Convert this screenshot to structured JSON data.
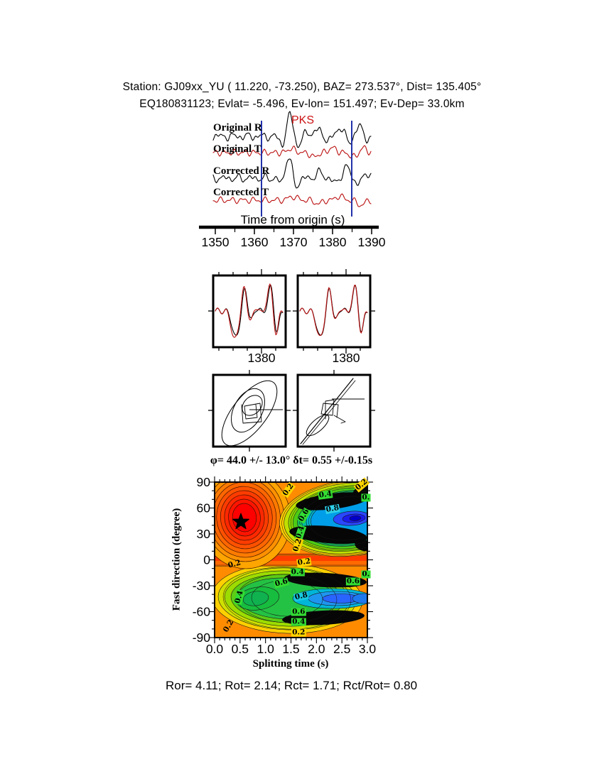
{
  "header": {
    "line1": "Station: GJ09xx_YU (  11.220,  -73.250), BAZ=  273.537°, Dist=  135.405°",
    "line2": "EQ180831123; Evlat=  -5.496, Ev-lon= 151.497; Ev-Dep= 33.0km"
  },
  "seismograms": {
    "phase_label": "PKS",
    "phase_color": "#cc1111",
    "trace_labels": [
      "Original R",
      "Original T",
      "Corrected R",
      "Corrected T"
    ],
    "trace_colors": [
      "#000000",
      "#bb1111",
      "#000000",
      "#bb1111"
    ],
    "axis_label": "Time from origin (s)",
    "tick_values": [
      "1350",
      "1360",
      "1370",
      "1380",
      "1390"
    ],
    "window_line_color": "#2233aa"
  },
  "compare_panels": {
    "tick_labels": [
      "1380",
      "1380"
    ],
    "trace_colors": [
      "#000000",
      "#bb1111"
    ]
  },
  "contour": {
    "title": "φ= 44.0 +/- 13.0° δt= 0.55 +/-0.15s",
    "ylabel": "Fast direction (degree)",
    "xlabel": "Splitting time (s)",
    "ytick_values": [
      "90",
      "60",
      "30",
      "0",
      "-30",
      "-60",
      "-90"
    ],
    "xtick_values": [
      "0.0",
      "0.5",
      "1.0",
      "1.5",
      "2.0",
      "2.5",
      "3.0"
    ],
    "palette": {
      "base": "#ff8c00",
      "hot": [
        "#ff9100",
        "#ff7b00",
        "#ff6600",
        "#ff5100",
        "#ff3c00",
        "#ff2800",
        "#ff1400",
        "#ff0000"
      ],
      "cold_top": [
        "#ffd000",
        "#c0e000",
        "#8cdc00",
        "#4ccc14",
        "#14bd62",
        "#00bda0",
        "#00b6cc",
        "#009ee8",
        "#3c82ff",
        "#2853ff",
        "#1c2cf0",
        "#0f0fd2"
      ],
      "cold_bot": [
        "#ffd000",
        "#cfe000",
        "#9cdc00",
        "#5ccc14",
        "#24c244"
      ],
      "black_patch": "#060606",
      "band": "#ff6a00",
      "band_core": "#ff3c00",
      "star": "#000000"
    },
    "annotations": [
      {
        "t": 1.45,
        "deg": 81,
        "text": "0.2",
        "bg": "#ffd400",
        "rot": -55
      },
      {
        "t": 2.89,
        "deg": 87,
        "text": "0.2",
        "bg": "#ffd400",
        "rot": -40
      },
      {
        "t": 2.18,
        "deg": 75,
        "text": "0.4",
        "bg": "#33dd33",
        "rot": -8
      },
      {
        "t": 2.97,
        "deg": 72,
        "text": "0.",
        "bg": "#33dd33",
        "rot": 0
      },
      {
        "t": 2.32,
        "deg": 59,
        "text": "0.8",
        "bg": "#2ed0e8",
        "rot": -10
      },
      {
        "t": 1.76,
        "deg": 51,
        "text": "0.6",
        "bg": "#33dd33",
        "rot": -60
      },
      {
        "t": 1.69,
        "deg": 32,
        "text": "0.4",
        "bg": "#33dd33",
        "rot": -72
      },
      {
        "t": 1.63,
        "deg": 17,
        "text": "0.2",
        "bg": "#ffd400",
        "rot": -72
      },
      {
        "t": 0.39,
        "deg": -5,
        "text": "0.2",
        "bg": null,
        "rot": -15
      },
      {
        "t": 1.76,
        "deg": -3,
        "text": "0.2",
        "bg": "#ffd400",
        "rot": -8
      },
      {
        "t": 1.63,
        "deg": -14,
        "text": "0.4",
        "bg": "#33dd33",
        "rot": 0
      },
      {
        "t": 1.31,
        "deg": -27,
        "text": "0.6",
        "bg": "#33dd33",
        "rot": -15
      },
      {
        "t": 2.72,
        "deg": -25,
        "text": "0.6",
        "bg": "#33dd33",
        "rot": 0
      },
      {
        "t": 2.97,
        "deg": -17,
        "text": "0.",
        "bg": "#33dd33",
        "rot": 0
      },
      {
        "t": 0.49,
        "deg": -43,
        "text": "0.4",
        "bg": "#33dd33",
        "rot": -75
      },
      {
        "t": 1.7,
        "deg": -42,
        "text": "0.8",
        "bg": "#18c8e0",
        "rot": -12
      },
      {
        "t": 1.65,
        "deg": -60,
        "text": "0.6",
        "bg": "#33dd33",
        "rot": 0
      },
      {
        "t": 1.65,
        "deg": -72,
        "text": "0.4",
        "bg": "#33dd33",
        "rot": 0
      },
      {
        "t": 1.65,
        "deg": -84,
        "text": "0.2",
        "bg": "#ffd400",
        "rot": 0
      },
      {
        "t": 0.28,
        "deg": -77,
        "text": "0.2",
        "bg": null,
        "rot": -60
      }
    ]
  },
  "results": {
    "text": "Ror= 4.11; Rot= 2.14; Rct= 1.71; Rct/Rot= 0.80",
    "Ror": 4.11,
    "Rot": 2.14,
    "Rct": 1.71,
    "Rct_over_Rot": 0.8
  },
  "chart_data": [
    {
      "type": "line",
      "panel": "seismograms",
      "series": [
        {
          "name": "Original R",
          "color": "#000000"
        },
        {
          "name": "Original T",
          "color": "#bb1111"
        },
        {
          "name": "Corrected R",
          "color": "#000000"
        },
        {
          "name": "Corrected T",
          "color": "#bb1111"
        }
      ],
      "xlabel": "Time from origin (s)",
      "xticks": [
        1350,
        1360,
        1370,
        1380,
        1390
      ],
      "xlim": [
        1346,
        1392
      ],
      "phase_marker": {
        "label": "PKS",
        "time_s": 1370
      },
      "analysis_window_s": [
        1362,
        1385
      ]
    },
    {
      "type": "line",
      "panel": "waveform-compare-left",
      "series": [
        "component-1",
        "component-2"
      ],
      "xticks": [
        1380
      ]
    },
    {
      "type": "line",
      "panel": "waveform-compare-right",
      "series": [
        "component-1",
        "component-2"
      ],
      "xticks": [
        1380
      ]
    },
    {
      "type": "scatter",
      "panel": "particle-motion-original",
      "description": "elliptical particle motion loops"
    },
    {
      "type": "scatter",
      "panel": "particle-motion-corrected",
      "description": "linearized diagonal particle motion"
    },
    {
      "type": "heatmap",
      "panel": "splitting-error-surface",
      "title": "φ= 44.0 +/- 13.0° δt= 0.55 +/-0.15s",
      "xlabel": "Splitting time (s)",
      "ylabel": "Fast direction (degree)",
      "xlim": [
        0,
        3
      ],
      "ylim": [
        -90,
        90
      ],
      "xticks": [
        0.0,
        0.5,
        1.0,
        1.5,
        2.0,
        2.5,
        3.0
      ],
      "yticks": [
        90,
        60,
        30,
        0,
        -30,
        -60,
        -90
      ],
      "contour_levels": [
        0.2,
        0.4,
        0.6,
        0.8
      ],
      "best_fit": {
        "phi_deg": 44.0,
        "phi_err_deg": 13.0,
        "dt_s": 0.55,
        "dt_err_s": 0.15
      },
      "maximum": {
        "dt_s": 0.55,
        "phi_deg": 44
      },
      "minima": [
        {
          "dt_s": 2.75,
          "phi_deg": 47
        },
        {
          "dt_s": 2.2,
          "phi_deg": -42
        }
      ]
    }
  ]
}
